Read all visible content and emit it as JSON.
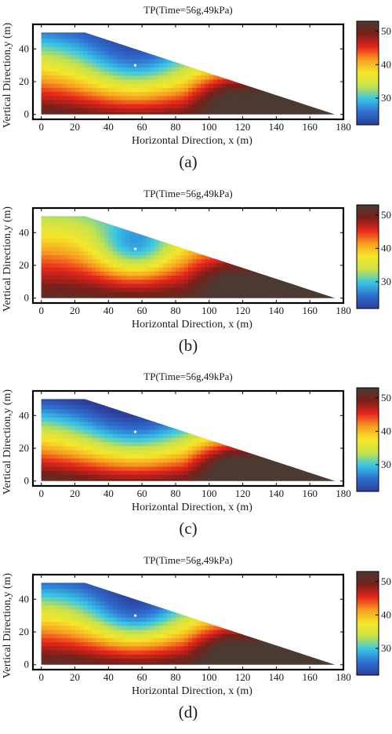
{
  "colors": {
    "colormap": [
      "#2b3f99",
      "#2f6fd0",
      "#38c6e6",
      "#c8e24a",
      "#f5e72a",
      "#f7a020",
      "#e8261c",
      "#7a1f1a",
      "#4a3a32"
    ],
    "marker": "#ffffff"
  },
  "chart_data": [
    {
      "type": "heatmap",
      "panel_label": "(a)",
      "title": "TP(Time=56g,49kPa)",
      "xlabel": "Horizontal Direction, x (m)",
      "ylabel": "Vertical Direction,y (m)",
      "xlim": [
        -5,
        180
      ],
      "ylim": [
        -3,
        55
      ],
      "xticks": [
        0,
        20,
        40,
        60,
        80,
        100,
        120,
        140,
        160,
        180
      ],
      "yticks": [
        0,
        20,
        40
      ],
      "colorbar": {
        "min": 22,
        "max": 53,
        "ticks": [
          30,
          40,
          50
        ]
      },
      "domain_outline": [
        [
          0,
          0
        ],
        [
          175,
          0
        ],
        [
          26,
          50
        ],
        [
          0,
          50
        ]
      ],
      "center": {
        "x": 56,
        "y": 30
      },
      "field": {
        "low": 27,
        "high": 51.5,
        "bowl_radius": 28,
        "bowl_depth": 10,
        "right_region_x": 85,
        "right_boost": 7
      }
    },
    {
      "type": "heatmap",
      "panel_label": "(b)",
      "title": "TP(Time=56g,49kPa)",
      "xlabel": "Horizontal Direction, x (m)",
      "ylabel": "Vertical Direction,y (m)",
      "xlim": [
        -5,
        180
      ],
      "ylim": [
        -3,
        55
      ],
      "xticks": [
        0,
        20,
        40,
        60,
        80,
        100,
        120,
        140,
        160,
        180
      ],
      "yticks": [
        0,
        20,
        40
      ],
      "colorbar": {
        "min": 22,
        "max": 53,
        "ticks": [
          30,
          40,
          50
        ]
      },
      "domain_outline": [
        [
          0,
          0
        ],
        [
          175,
          0
        ],
        [
          26,
          50
        ],
        [
          0,
          50
        ]
      ],
      "center": {
        "x": 56,
        "y": 30
      },
      "field": {
        "low": 33,
        "high": 51.5,
        "bowl_radius": 20,
        "bowl_depth": 12,
        "right_region_x": 85,
        "right_boost": 6
      }
    },
    {
      "type": "heatmap",
      "panel_label": "(c)",
      "title": "TP(Time=56g,49kPa)",
      "xlabel": "Horizontal Direction, x (m)",
      "ylabel": "Vertical Direction,y (m)",
      "xlim": [
        -5,
        180
      ],
      "ylim": [
        -3,
        55
      ],
      "xticks": [
        0,
        20,
        40,
        60,
        80,
        100,
        120,
        140,
        160,
        180
      ],
      "yticks": [
        0,
        20,
        40
      ],
      "colorbar": {
        "min": 22,
        "max": 53,
        "ticks": [
          30,
          40,
          50
        ]
      },
      "domain_outline": [
        [
          0,
          0
        ],
        [
          175,
          0
        ],
        [
          26,
          50
        ],
        [
          0,
          50
        ]
      ],
      "center": {
        "x": 56,
        "y": 30
      },
      "field": {
        "low": 24,
        "high": 52,
        "bowl_radius": 30,
        "bowl_depth": 9,
        "right_region_x": 85,
        "right_boost": 8
      }
    },
    {
      "type": "heatmap",
      "panel_label": "(d)",
      "title": "TP(Time=56g,49kPa)",
      "xlabel": "Horizontal Direction, x (m)",
      "ylabel": "Vertical Direction,y (m)",
      "xlim": [
        -5,
        180
      ],
      "ylim": [
        -3,
        55
      ],
      "xticks": [
        0,
        20,
        40,
        60,
        80,
        100,
        120,
        140,
        160,
        180
      ],
      "yticks": [
        0,
        20,
        40
      ],
      "colorbar": {
        "min": 22,
        "max": 53,
        "ticks": [
          30,
          40,
          50
        ]
      },
      "domain_outline": [
        [
          0,
          0
        ],
        [
          175,
          0
        ],
        [
          26,
          50
        ],
        [
          0,
          50
        ]
      ],
      "center": {
        "x": 56,
        "y": 30
      },
      "field": {
        "low": 26,
        "high": 52,
        "bowl_radius": 24,
        "bowl_depth": 11,
        "right_region_x": 85,
        "right_boost": 7
      }
    }
  ]
}
